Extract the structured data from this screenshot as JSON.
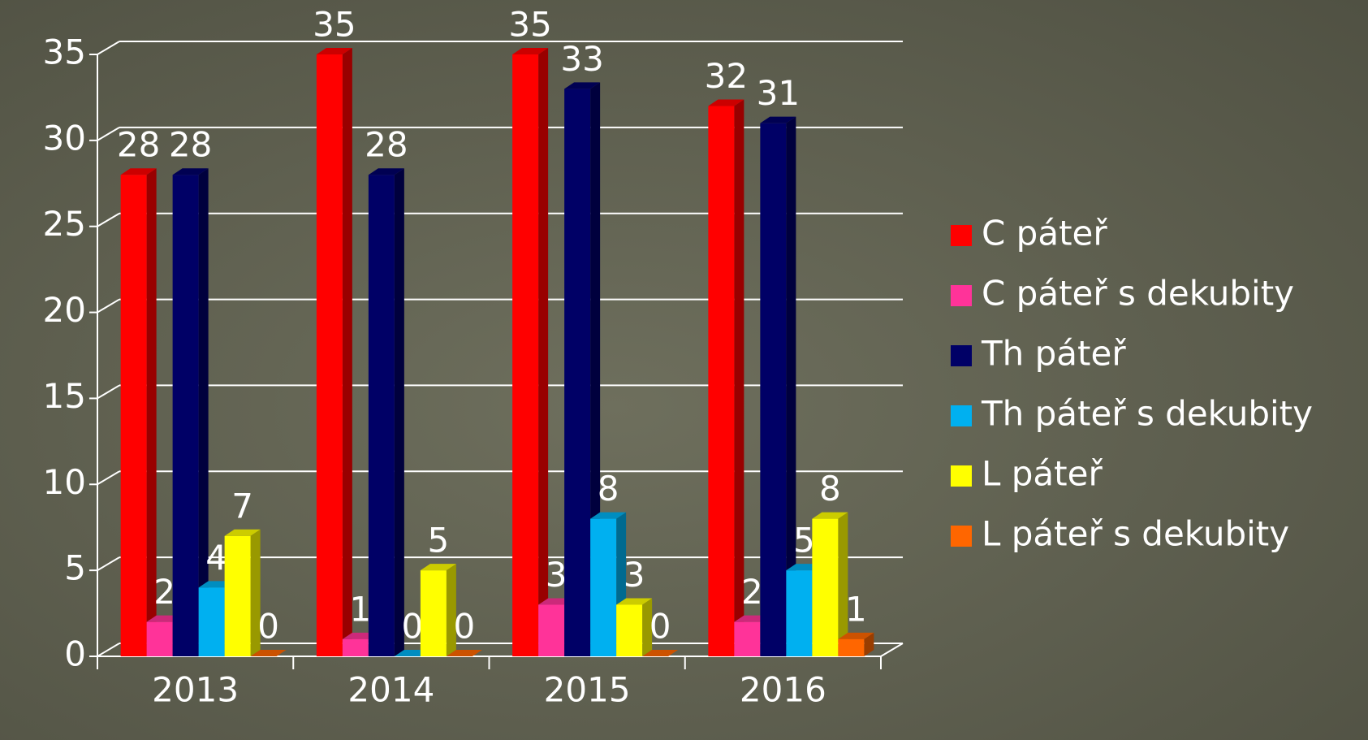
{
  "chart_data": {
    "type": "bar",
    "categories": [
      "2013",
      "2014",
      "2015",
      "2016"
    ],
    "series": [
      {
        "name": "C páteř",
        "color": "#ff0000",
        "values": [
          28,
          35,
          35,
          32
        ]
      },
      {
        "name": "C páteř s dekubity",
        "color": "#ff3399",
        "values": [
          2,
          1,
          3,
          2
        ]
      },
      {
        "name": "Th páteř",
        "color": "#000066",
        "values": [
          28,
          28,
          33,
          31
        ]
      },
      {
        "name": "Th páteř s dekubity",
        "color": "#00b0f0",
        "values": [
          4,
          0,
          8,
          5
        ]
      },
      {
        "name": "L páteř",
        "color": "#ffff00",
        "values": [
          7,
          5,
          3,
          8
        ]
      },
      {
        "name": "L páteř s dekubity",
        "color": "#ff6600",
        "values": [
          0,
          0,
          0,
          1
        ]
      }
    ],
    "ylim": [
      0,
      35
    ],
    "yticks": [
      0,
      5,
      10,
      15,
      20,
      25,
      30,
      35
    ],
    "grid": true,
    "legend": "right"
  }
}
